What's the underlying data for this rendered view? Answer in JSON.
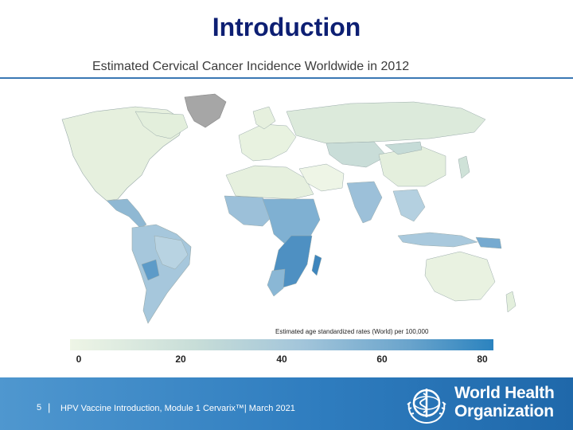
{
  "slide": {
    "title": "Introduction"
  },
  "map": {
    "title": "Estimated Cervical Cancer Incidence Worldwide in 2012",
    "legend": {
      "caption": "Estimated age standardized rates (World) per 100,000",
      "ticks": [
        "0",
        "20",
        "40",
        "60",
        "80"
      ],
      "color_low": "#eef5e6",
      "color_high": "#2b83bf"
    }
  },
  "footer": {
    "page_number": "5",
    "separator": "|",
    "text": "HPV Vaccine Introduction, Module 1 Cervarix™| March 2021",
    "logo": {
      "line1": "World Health",
      "line2": "Organization",
      "icon": "who-emblem-icon"
    },
    "background": "#2f7dbf"
  }
}
